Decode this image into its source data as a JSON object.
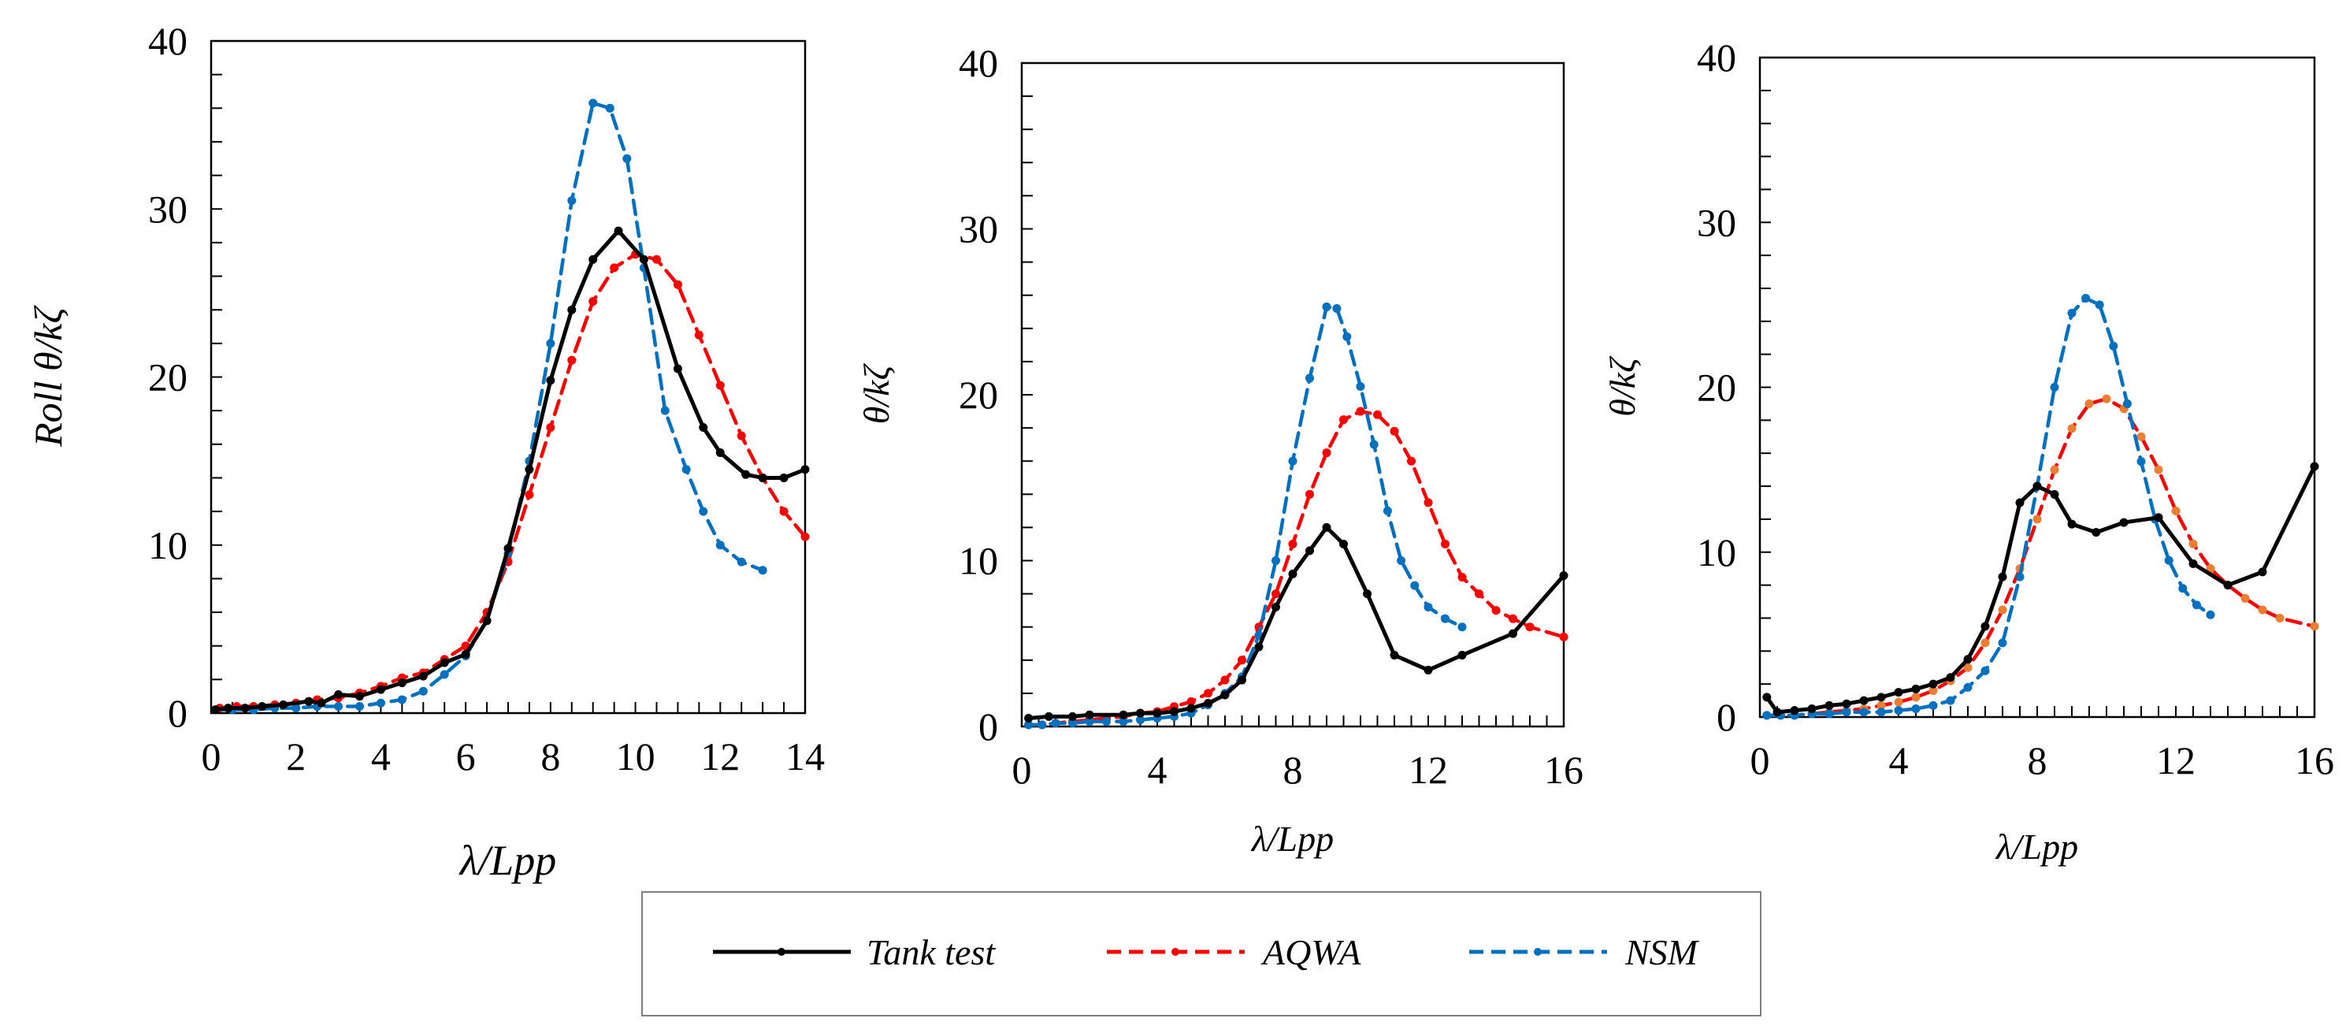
{
  "chart_data": [
    {
      "type": "line",
      "title": "",
      "xlabel": "λ/Lpp",
      "ylabel": "Roll θ/kζ",
      "xlim": [
        0,
        14
      ],
      "ylim": [
        0,
        40
      ],
      "xticks": [
        "0",
        "2",
        "4",
        "6",
        "8",
        "10",
        "12",
        "14"
      ],
      "yticks": [
        "0",
        "10",
        "20",
        "30",
        "40"
      ],
      "series": [
        {
          "name": "Tank test",
          "x": [
            0.1,
            0.4,
            0.8,
            1.2,
            1.7,
            2.3,
            2.6,
            3.0,
            3.5,
            4.0,
            4.5,
            5.0,
            5.5,
            6.0,
            6.5,
            7.0,
            7.5,
            8.0,
            8.5,
            9.0,
            9.6,
            10.2,
            11.0,
            11.6,
            12.0,
            12.6,
            13.0,
            13.5,
            14.0
          ],
          "y": [
            0.2,
            0.3,
            0.3,
            0.4,
            0.5,
            0.7,
            0.6,
            1.1,
            1.0,
            1.4,
            1.8,
            2.2,
            3.0,
            3.5,
            5.5,
            9.8,
            14.5,
            19.8,
            24.0,
            27.0,
            28.7,
            27.0,
            20.5,
            17.0,
            15.5,
            14.2,
            14.0,
            14.0,
            14.5
          ]
        },
        {
          "name": "AQWA",
          "x": [
            0.2,
            0.6,
            1.0,
            1.5,
            2.0,
            2.5,
            3.0,
            3.5,
            4.0,
            4.5,
            5.0,
            5.5,
            6.0,
            6.5,
            7.0,
            7.5,
            8.0,
            8.5,
            9.0,
            9.5,
            10.0,
            10.5,
            11.0,
            11.5,
            12.0,
            12.5,
            13.0,
            13.5,
            14.0
          ],
          "y": [
            0.3,
            0.4,
            0.4,
            0.5,
            0.6,
            0.8,
            0.9,
            1.2,
            1.6,
            2.1,
            2.4,
            3.2,
            4.0,
            6.0,
            9.0,
            13.0,
            17.0,
            21.0,
            24.5,
            26.5,
            27.3,
            27.0,
            25.5,
            22.5,
            19.5,
            16.5,
            14.0,
            12.0,
            10.5
          ]
        },
        {
          "name": "NSM",
          "x": [
            0.1,
            0.5,
            1.0,
            1.5,
            2.0,
            2.5,
            3.0,
            3.5,
            4.0,
            4.5,
            5.0,
            5.5,
            6.0,
            6.5,
            7.0,
            7.5,
            8.0,
            8.5,
            9.0,
            9.4,
            9.8,
            10.2,
            10.7,
            11.2,
            11.6,
            12.0,
            12.5,
            13.0
          ],
          "y": [
            0.2,
            0.2,
            0.2,
            0.3,
            0.3,
            0.4,
            0.4,
            0.4,
            0.6,
            0.8,
            1.3,
            2.3,
            3.4,
            5.5,
            9.5,
            15.0,
            22.0,
            30.5,
            36.3,
            36.0,
            33.0,
            26.5,
            18.0,
            14.5,
            12.0,
            10.0,
            9.0,
            8.5
          ]
        }
      ]
    },
    {
      "type": "line",
      "title": "",
      "xlabel": "λ/Lpp",
      "ylabel": "θ/kζ",
      "xlim": [
        0,
        16
      ],
      "ylim": [
        0,
        40
      ],
      "xticks": [
        "0",
        "4",
        "8",
        "12",
        "16"
      ],
      "yticks": [
        "0",
        "10",
        "20",
        "30",
        "40"
      ],
      "series": [
        {
          "name": "Tank test",
          "x": [
            0.2,
            0.8,
            1.5,
            2.0,
            3.0,
            3.5,
            4.0,
            4.5,
            5.0,
            5.5,
            6.0,
            6.5,
            7.0,
            7.5,
            8.0,
            8.5,
            9.0,
            9.5,
            10.2,
            11.0,
            12.0,
            13.0,
            14.5,
            16.0
          ],
          "y": [
            0.5,
            0.6,
            0.6,
            0.7,
            0.7,
            0.8,
            0.8,
            0.9,
            1.1,
            1.4,
            1.9,
            2.8,
            4.8,
            7.2,
            9.2,
            10.6,
            12.0,
            11.0,
            8.0,
            4.3,
            3.4,
            4.3,
            5.6,
            9.1
          ]
        },
        {
          "name": "AQWA",
          "x": [
            0.2,
            0.6,
            1.0,
            1.5,
            2.0,
            2.5,
            3.0,
            3.5,
            4.0,
            4.5,
            5.0,
            5.5,
            6.0,
            6.5,
            7.0,
            7.5,
            8.0,
            8.5,
            9.0,
            9.5,
            10.0,
            10.5,
            11.0,
            11.5,
            12.0,
            12.5,
            13.0,
            13.5,
            14.0,
            14.5,
            15.0,
            16.0
          ],
          "y": [
            0.1,
            0.1,
            0.2,
            0.3,
            0.4,
            0.5,
            0.6,
            0.8,
            0.9,
            1.2,
            1.5,
            2.0,
            2.8,
            4.0,
            6.0,
            8.0,
            11.0,
            14.0,
            16.5,
            18.5,
            19.0,
            18.8,
            17.8,
            16.0,
            13.5,
            11.0,
            9.0,
            8.0,
            7.0,
            6.5,
            6.0,
            5.4
          ]
        },
        {
          "name": "NSM",
          "x": [
            0.2,
            0.6,
            1.0,
            1.5,
            2.0,
            2.5,
            3.0,
            3.5,
            4.0,
            4.5,
            5.0,
            5.5,
            6.0,
            6.5,
            7.0,
            7.5,
            8.0,
            8.5,
            9.0,
            9.3,
            9.6,
            10.0,
            10.4,
            10.8,
            11.2,
            11.6,
            12.0,
            12.5,
            13.0
          ],
          "y": [
            0.1,
            0.1,
            0.2,
            0.2,
            0.3,
            0.3,
            0.3,
            0.4,
            0.5,
            0.6,
            0.8,
            1.3,
            2.0,
            3.0,
            5.5,
            10.0,
            16.0,
            21.0,
            25.3,
            25.2,
            23.5,
            20.5,
            17.0,
            13.0,
            10.0,
            8.5,
            7.2,
            6.5,
            6.0
          ]
        }
      ]
    },
    {
      "type": "line",
      "title": "",
      "xlabel": "λ/Lpp",
      "ylabel": "θ/kζ",
      "xlim": [
        0,
        16
      ],
      "ylim": [
        0,
        40
      ],
      "xticks": [
        "0",
        "4",
        "8",
        "12",
        "16"
      ],
      "yticks": [
        "0",
        "10",
        "20",
        "30",
        "40"
      ],
      "series": [
        {
          "name": "Tank test",
          "x": [
            0.2,
            0.5,
            1.0,
            1.5,
            2.0,
            2.5,
            3.0,
            3.5,
            4.0,
            4.5,
            5.0,
            5.5,
            6.0,
            6.5,
            7.0,
            7.5,
            8.0,
            8.5,
            9.0,
            9.7,
            10.5,
            11.5,
            12.5,
            13.5,
            14.5,
            16.0
          ],
          "y": [
            1.2,
            0.3,
            0.4,
            0.5,
            0.7,
            0.8,
            1.0,
            1.2,
            1.5,
            1.7,
            2.0,
            2.4,
            3.5,
            5.5,
            8.5,
            13.0,
            14.0,
            13.5,
            11.7,
            11.2,
            11.8,
            12.1,
            9.3,
            8.0,
            8.8,
            15.2
          ]
        },
        {
          "name": "AQWA",
          "x": [
            0.2,
            0.6,
            1.0,
            1.5,
            2.0,
            2.5,
            3.0,
            3.5,
            4.0,
            4.5,
            5.0,
            5.5,
            6.0,
            6.5,
            7.0,
            7.5,
            8.0,
            8.5,
            9.0,
            9.5,
            10.0,
            10.5,
            11.0,
            11.5,
            12.0,
            12.5,
            13.0,
            13.5,
            14.0,
            14.5,
            15.0,
            16.0
          ],
          "y": [
            0.1,
            0.1,
            0.1,
            0.2,
            0.3,
            0.4,
            0.5,
            0.7,
            0.9,
            1.2,
            1.6,
            2.2,
            3.0,
            4.5,
            6.5,
            9.0,
            12.0,
            15.0,
            17.5,
            19.0,
            19.3,
            18.7,
            17.0,
            15.0,
            12.5,
            10.5,
            9.0,
            8.0,
            7.2,
            6.5,
            6.0,
            5.5
          ]
        },
        {
          "name": "NSM",
          "x": [
            0.2,
            0.6,
            1.0,
            1.5,
            2.0,
            2.5,
            3.0,
            3.5,
            4.0,
            4.5,
            5.0,
            5.5,
            6.0,
            6.5,
            7.0,
            7.5,
            8.0,
            8.5,
            9.0,
            9.4,
            9.8,
            10.2,
            10.6,
            11.0,
            11.4,
            11.8,
            12.2,
            12.6,
            13.0
          ],
          "y": [
            0.1,
            0.1,
            0.1,
            0.2,
            0.2,
            0.3,
            0.3,
            0.3,
            0.4,
            0.5,
            0.7,
            1.0,
            1.8,
            2.8,
            4.5,
            8.5,
            14.0,
            20.0,
            24.5,
            25.4,
            25.0,
            22.5,
            19.0,
            15.5,
            12.0,
            9.5,
            7.8,
            6.8,
            6.2
          ]
        }
      ]
    }
  ],
  "legend": {
    "items": [
      {
        "label": "Tank test",
        "color": "#000000"
      },
      {
        "label": "AQWA",
        "color": "#ff0000"
      },
      {
        "label": "NSM",
        "color": "#0070c0"
      }
    ]
  },
  "colors": {
    "tank": "#000000",
    "aqwa": "#ff0000",
    "nsm": "#0070c0",
    "aqwa_marker_panel3": "#ed7d31"
  }
}
